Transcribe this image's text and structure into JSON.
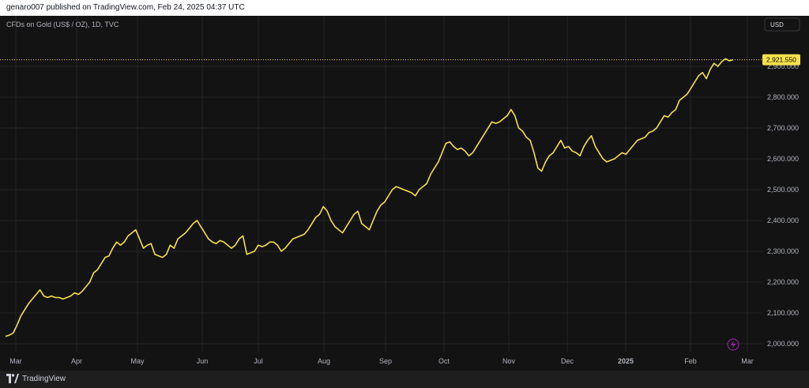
{
  "header": {
    "publish_line": "genaro007 published on TradingView.com, Feb 24, 2025 04:37 UTC"
  },
  "chart_header": {
    "symbol_line": "CFDs on Gold (US$ / OZ), 1D, TVC",
    "currency_button": "USD"
  },
  "footer": {
    "brand": "TradingView"
  },
  "colors": {
    "background": "#131313",
    "line": "#f6e14a",
    "grid": "#262626",
    "axis_text": "#b2b5be",
    "last_price_bg": "#f6e14a",
    "last_price_text": "#000000"
  },
  "icons": {
    "flash_icon": "lightning-icon",
    "brand_logo": "tradingview-logo"
  },
  "chart_data": {
    "type": "line",
    "title": "",
    "series": [
      {
        "values": [
          2024,
          2028,
          2035,
          2060,
          2090,
          2110,
          2130,
          2145,
          2160,
          2175,
          2155,
          2150,
          2155,
          2150,
          2150,
          2145,
          2150,
          2155,
          2165,
          2160,
          2170,
          2185,
          2200,
          2230,
          2240,
          2260,
          2280,
          2285,
          2310,
          2330,
          2320,
          2330,
          2350,
          2360,
          2370,
          2340,
          2310,
          2320,
          2325,
          2290,
          2285,
          2280,
          2290,
          2320,
          2310,
          2340,
          2350,
          2360,
          2375,
          2390,
          2400,
          2380,
          2360,
          2340,
          2330,
          2325,
          2335,
          2330,
          2320,
          2310,
          2320,
          2340,
          2350,
          2290,
          2295,
          2300,
          2320,
          2315,
          2320,
          2330,
          2330,
          2320,
          2300,
          2310,
          2325,
          2340,
          2345,
          2350,
          2355,
          2370,
          2390,
          2410,
          2420,
          2445,
          2430,
          2400,
          2380,
          2370,
          2360,
          2380,
          2400,
          2420,
          2430,
          2390,
          2380,
          2370,
          2400,
          2430,
          2450,
          2460,
          2480,
          2500,
          2510,
          2505,
          2500,
          2495,
          2490,
          2480,
          2500,
          2510,
          2520,
          2550,
          2570,
          2590,
          2620,
          2650,
          2655,
          2640,
          2630,
          2635,
          2625,
          2610,
          2620,
          2640,
          2660,
          2680,
          2700,
          2720,
          2715,
          2720,
          2730,
          2740,
          2760,
          2740,
          2700,
          2690,
          2670,
          2660,
          2620,
          2570,
          2560,
          2590,
          2610,
          2620,
          2640,
          2660,
          2635,
          2640,
          2625,
          2620,
          2610,
          2640,
          2660,
          2675,
          2640,
          2620,
          2600,
          2590,
          2595,
          2600,
          2610,
          2620,
          2615,
          2630,
          2645,
          2660,
          2665,
          2670,
          2685,
          2690,
          2700,
          2720,
          2740,
          2735,
          2750,
          2760,
          2790,
          2800,
          2810,
          2830,
          2850,
          2870,
          2880,
          2860,
          2890,
          2910,
          2900,
          2915,
          2925,
          2918,
          2921.55
        ]
      }
    ],
    "x_tick_labels": [
      "Mar",
      "Apr",
      "May",
      "Jun",
      "Jul",
      "Aug",
      "Sep",
      "Oct",
      "Nov",
      "Dec",
      "2025",
      "Feb",
      "Mar"
    ],
    "y_ticks": [
      2000,
      2100,
      2200,
      2300,
      2400,
      2500,
      2600,
      2700,
      2800,
      2900
    ],
    "y_tick_labels": [
      "2,000.000",
      "2,100.000",
      "2,200.000",
      "2,300.000",
      "2,400.000",
      "2,500.000",
      "2,600.000",
      "2,700.000",
      "2,800.000",
      "2,900.000"
    ],
    "ylim": [
      1970,
      2970
    ],
    "last_value_label": "2,921.550",
    "last_value": 2921.55,
    "grid": true,
    "legend": "none"
  }
}
